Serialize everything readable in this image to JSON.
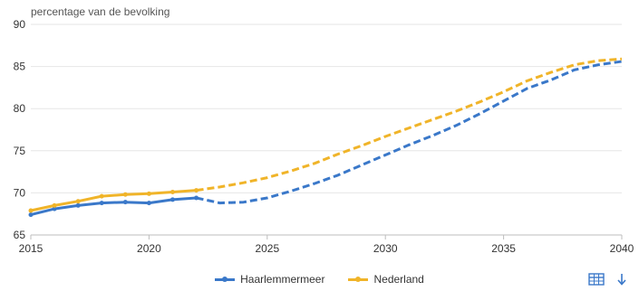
{
  "chart_data": {
    "type": "line",
    "ylabel": "percentage van de bevolking",
    "xlim": [
      2015,
      2040
    ],
    "ylim": [
      65,
      90
    ],
    "x_ticks": [
      "2015",
      "2020",
      "2025",
      "2030",
      "2035",
      "2040"
    ],
    "y_ticks": [
      "65",
      "70",
      "75",
      "80",
      "85",
      "90"
    ],
    "grid": true,
    "legend_position": "bottom-center",
    "series": [
      {
        "name": "Haarlemmermeer",
        "color": "#3a78c9",
        "observed": {
          "x": [
            2015,
            2016,
            2017,
            2018,
            2019,
            2020,
            2021,
            2022
          ],
          "y": [
            67.4,
            68.1,
            68.5,
            68.8,
            68.9,
            68.8,
            69.2,
            69.4
          ]
        },
        "forecast": {
          "x": [
            2022,
            2023,
            2024,
            2025,
            2026,
            2027,
            2028,
            2029,
            2030,
            2031,
            2032,
            2033,
            2034,
            2035,
            2036,
            2037,
            2038,
            2039,
            2040
          ],
          "y": [
            69.4,
            68.8,
            68.9,
            69.4,
            70.2,
            71.1,
            72.1,
            73.3,
            74.5,
            75.7,
            76.8,
            78.0,
            79.4,
            80.9,
            82.4,
            83.4,
            84.6,
            85.2,
            85.6
          ]
        }
      },
      {
        "name": "Nederland",
        "color": "#f0b429",
        "observed": {
          "x": [
            2015,
            2016,
            2017,
            2018,
            2019,
            2020,
            2021,
            2022
          ],
          "y": [
            67.9,
            68.5,
            69.0,
            69.6,
            69.8,
            69.9,
            70.1,
            70.3
          ]
        },
        "forecast": {
          "x": [
            2022,
            2023,
            2024,
            2025,
            2026,
            2027,
            2028,
            2029,
            2030,
            2031,
            2032,
            2033,
            2034,
            2035,
            2036,
            2037,
            2038,
            2039,
            2040
          ],
          "y": [
            70.3,
            70.7,
            71.2,
            71.8,
            72.6,
            73.5,
            74.6,
            75.6,
            76.7,
            77.7,
            78.7,
            79.7,
            80.8,
            82.0,
            83.3,
            84.3,
            85.2,
            85.7,
            85.9
          ]
        }
      }
    ]
  },
  "toolbar": {
    "table_icon": "table-icon",
    "download_icon": "download-arrow-icon"
  }
}
